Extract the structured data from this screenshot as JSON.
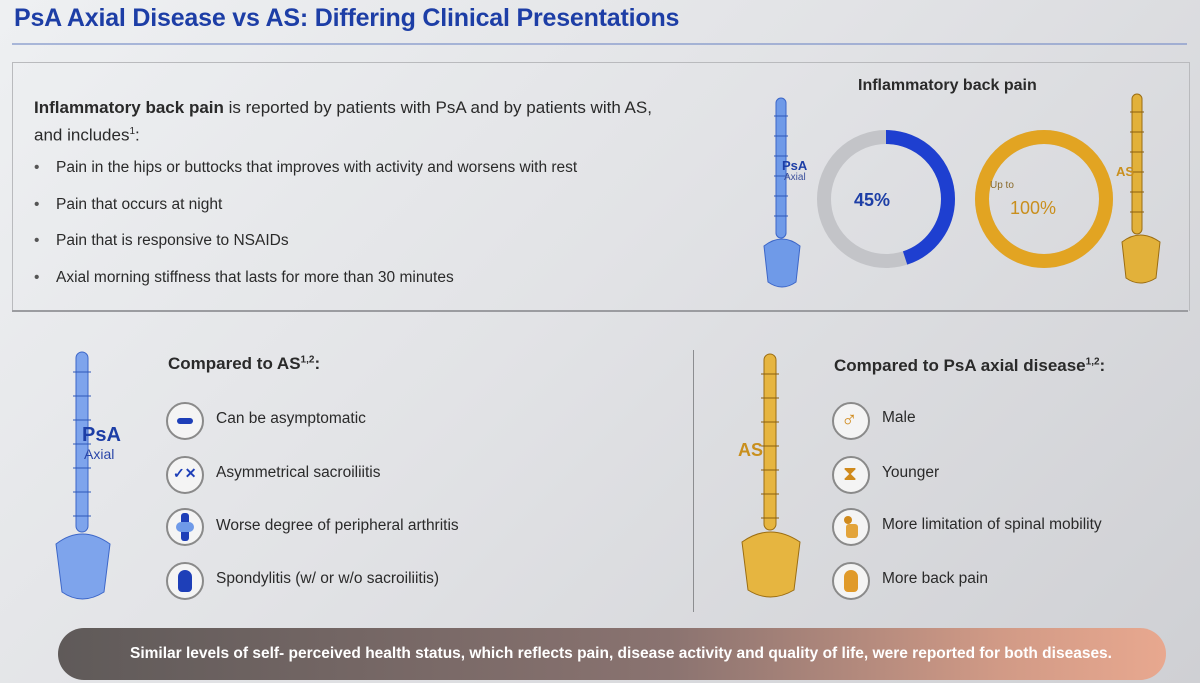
{
  "slide": {
    "title": "PsA Axial Disease vs AS: Differing Clinical Presentations"
  },
  "intro": {
    "bold_lead": "Inflammatory back pain",
    "text_1": " is reported by patients with PsA and by patients with AS,",
    "text_2": "and includes",
    "sup": "1",
    "colon": ":"
  },
  "bullets": [
    "Pain in the hips or buttocks that improves with activity and worsens with rest",
    "Pain that occurs at night",
    "Pain that is responsive to NSAIDs",
    "Axial morning stiffness that lasts for more than 30 minutes"
  ],
  "ibp_chart": {
    "title": "Inflammatory back pain",
    "psa_label": "PsA",
    "psa_sub": "Axial",
    "psa_value": "45%",
    "psa_fraction": 0.45,
    "as_label": "AS",
    "as_prefix": "Up to",
    "as_value": "100%",
    "as_fraction": 1.0,
    "colors": {
      "psa": "#1e3fd0",
      "as": "#e2a422",
      "track": "#c3c4c8"
    }
  },
  "psa_section": {
    "spine_label": "PsA",
    "spine_sub": "Axial",
    "heading": "Compared to AS",
    "heading_sup": "1,2",
    "heading_colon": ":",
    "items": [
      {
        "icon": "minus-icon",
        "label": "Can be asymptomatic"
      },
      {
        "icon": "check-cross-icon",
        "label": "Asymmetrical sacroiliitis"
      },
      {
        "icon": "knee-joint-icon",
        "label": "Worse degree of peripheral arthritis"
      },
      {
        "icon": "back-pain-icon",
        "label": "Spondylitis (w/ or w/o sacroiliitis)"
      }
    ]
  },
  "as_section": {
    "spine_label": "AS",
    "heading": "Compared to PsA axial disease",
    "heading_sup": "1,2",
    "heading_colon": ":",
    "items": [
      {
        "icon": "male-symbol-icon",
        "label": "Male"
      },
      {
        "icon": "hourglass-icon",
        "label": "Younger"
      },
      {
        "icon": "bending-person-icon",
        "label": "More limitation of spinal mobility"
      },
      {
        "icon": "back-pain-icon",
        "label": "More back pain"
      }
    ]
  },
  "footer": {
    "text": "Similar levels of self- perceived health status, which reflects pain, disease activity and quality of life, were reported for both diseases."
  }
}
